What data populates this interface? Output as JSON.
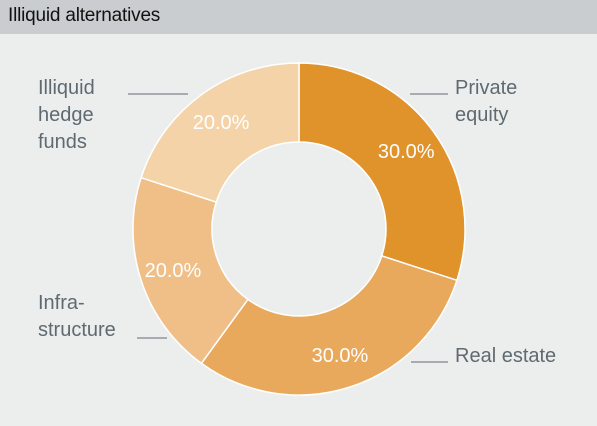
{
  "header": {
    "title": "Illiquid alternatives"
  },
  "chart_data": {
    "type": "pie",
    "donut": true,
    "title": "Illiquid alternatives",
    "slices": [
      {
        "label": "Private equity",
        "value": 30.0,
        "value_label": "30.0%",
        "color": "#e0922b"
      },
      {
        "label": "Real estate",
        "value": 30.0,
        "value_label": "30.0%",
        "color": "#e8a95c"
      },
      {
        "label": "Infra-structure",
        "value": 20.0,
        "value_label": "20.0%",
        "color": "#efbf87"
      },
      {
        "label": "Illiquid hedge funds",
        "value": 20.0,
        "value_label": "20.0%",
        "color": "#f4d3a8"
      }
    ],
    "slice_label_lines": [
      [
        "Private",
        "equity"
      ],
      [
        "Real estate"
      ],
      [
        "Infra-",
        "structure"
      ],
      [
        "Illiquid",
        "hedge",
        "funds"
      ]
    ]
  }
}
